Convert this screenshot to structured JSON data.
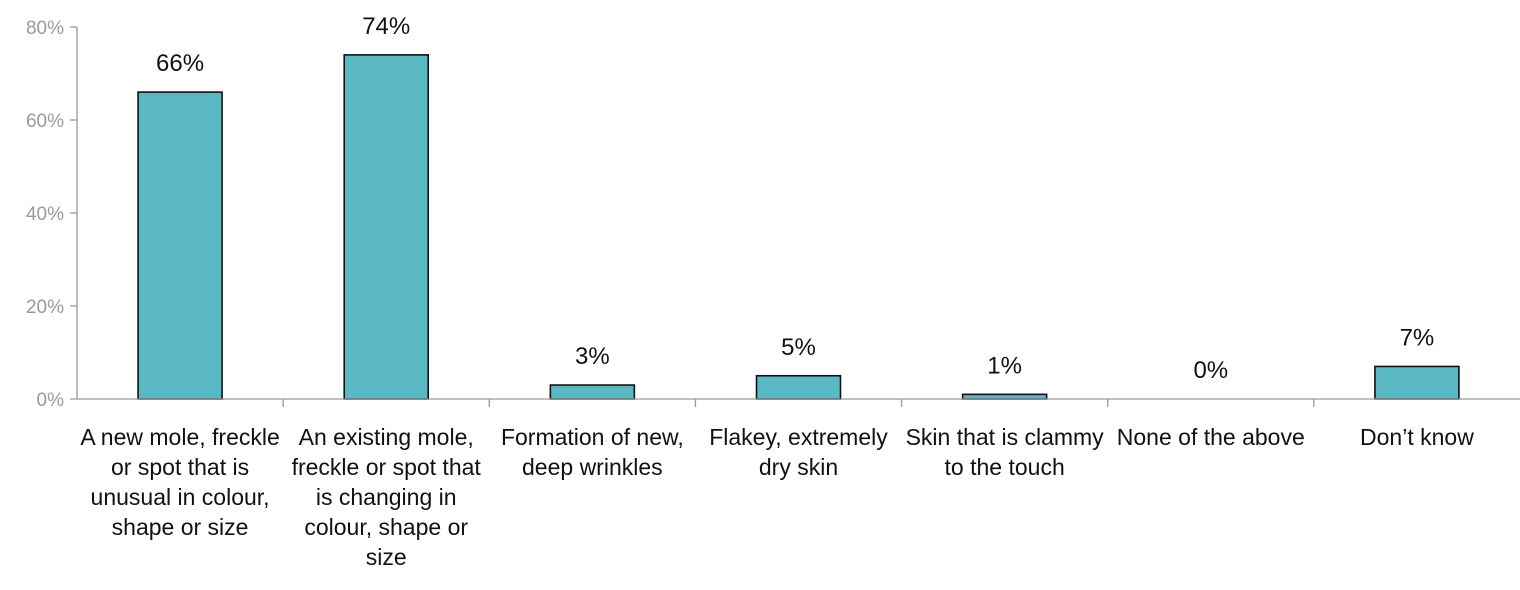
{
  "chart_data": {
    "type": "bar",
    "title": "",
    "xlabel": "",
    "ylabel": "",
    "ylim": [
      0,
      80
    ],
    "yticks": [
      0,
      20,
      40,
      60,
      80
    ],
    "ytick_labels": [
      "0%",
      "20%",
      "40%",
      "60%",
      "80%"
    ],
    "categories": [
      "A new mole, freckle or spot that is unusual in colour, shape or size",
      "An existing mole, freckle or spot that is changing in colour, shape or size",
      "Formation of new, deep wrinkles",
      "Flakey, extremely dry skin",
      "Skin that is clammy to the touch",
      "None of the above",
      "Don’t know"
    ],
    "values": [
      66,
      74,
      3,
      5,
      1,
      0,
      7
    ],
    "value_labels": [
      "66%",
      "74%",
      "3%",
      "5%",
      "1%",
      "0%",
      "7%"
    ],
    "grid": false,
    "legend": "none",
    "colors": {
      "bar": "#5ab7c4",
      "bar_edge": "#111111",
      "axis": "#9a9a9a"
    }
  }
}
